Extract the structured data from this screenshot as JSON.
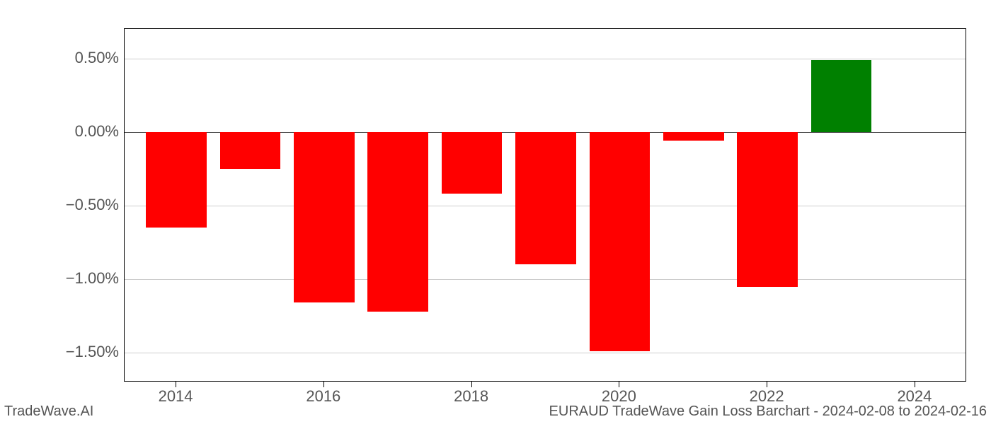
{
  "chart": {
    "type": "bar",
    "years": [
      2014,
      2015,
      2016,
      2017,
      2018,
      2019,
      2020,
      2021,
      2022,
      2023,
      2024
    ],
    "values": [
      -0.65,
      -0.25,
      -1.16,
      -1.22,
      -0.42,
      -0.9,
      -1.49,
      -0.06,
      -1.05,
      0.49,
      null
    ],
    "bar_colors": [
      "#ff0000",
      "#ff0000",
      "#ff0000",
      "#ff0000",
      "#ff0000",
      "#ff0000",
      "#ff0000",
      "#ff0000",
      "#ff0000",
      "#008000",
      "#ffffff"
    ],
    "ylim": [
      -1.7,
      0.7
    ],
    "y_ticks": [
      0.5,
      0.0,
      -0.5,
      -1.0,
      -1.5
    ],
    "y_tick_labels": [
      "0.50%",
      "0.00%",
      "−0.50%",
      "−1.00%",
      "−1.50%"
    ],
    "x_tick_years": [
      2014,
      2016,
      2018,
      2020,
      2022,
      2024
    ],
    "x_tick_labels": [
      "2014",
      "2016",
      "2018",
      "2020",
      "2022",
      "2024"
    ],
    "bar_width": 0.82,
    "background_color": "#ffffff",
    "grid_color": "#cccccc",
    "axis_color": "#000000",
    "tick_label_color": "#555555",
    "tick_fontsize": 22,
    "footer_fontsize": 20
  },
  "footer": {
    "left": "TradeWave.AI",
    "right": "EURAUD TradeWave Gain Loss Barchart - 2024-02-08 to 2024-02-16"
  }
}
